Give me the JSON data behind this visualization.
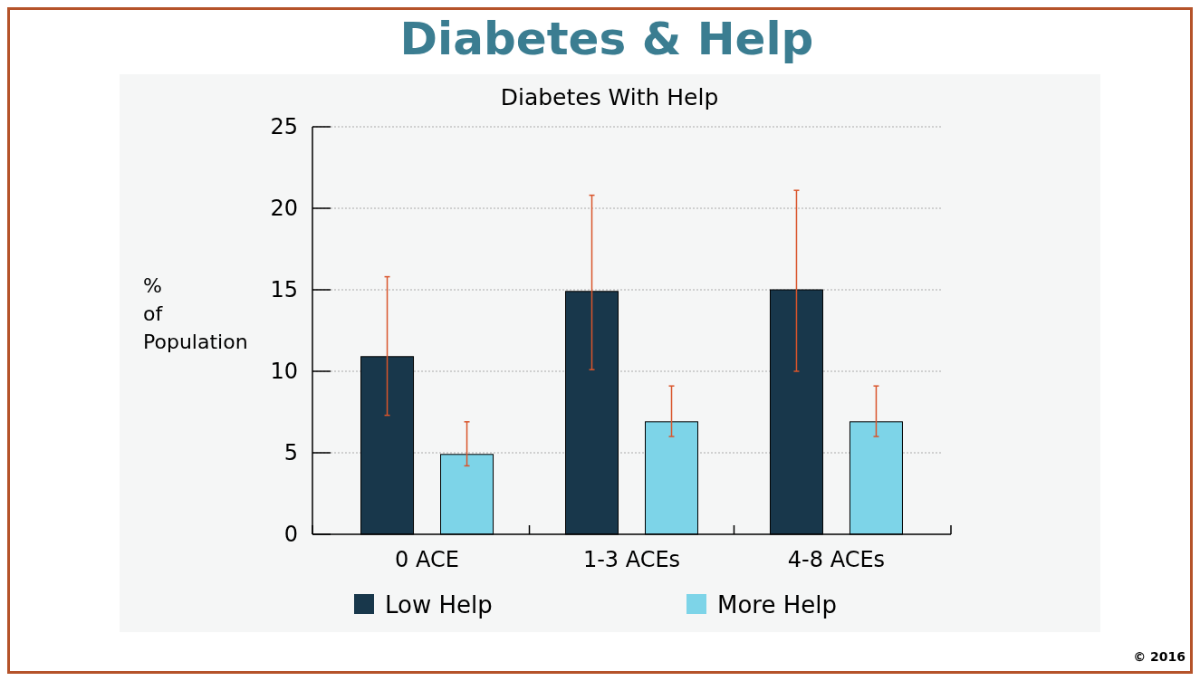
{
  "chart_data": {
    "type": "bar",
    "title": "Diabetes & Help",
    "subtitle": "Diabetes With Help",
    "ylabel": "% of Population",
    "categories": [
      "0 ACE",
      "1-3 ACEs",
      "4-8 ACEs"
    ],
    "series": [
      {
        "name": "Low Help",
        "color": "#18374b",
        "values": [
          10.9,
          14.9,
          15.0
        ],
        "errors": [
          [
            7.3,
            15.8
          ],
          [
            10.1,
            20.8
          ],
          [
            10.0,
            21.1
          ]
        ]
      },
      {
        "name": "More Help",
        "color": "#7dd4e8",
        "values": [
          4.9,
          6.9,
          6.9
        ],
        "errors": [
          [
            4.2,
            6.9
          ],
          [
            6.0,
            9.1
          ],
          [
            6.0,
            9.1
          ]
        ]
      }
    ],
    "ylim": [
      0,
      25
    ],
    "yticks": [
      0,
      5,
      10,
      15,
      20,
      25
    ],
    "grid": "y",
    "legend": "bottom",
    "annotations": [
      "© 2016"
    ]
  }
}
